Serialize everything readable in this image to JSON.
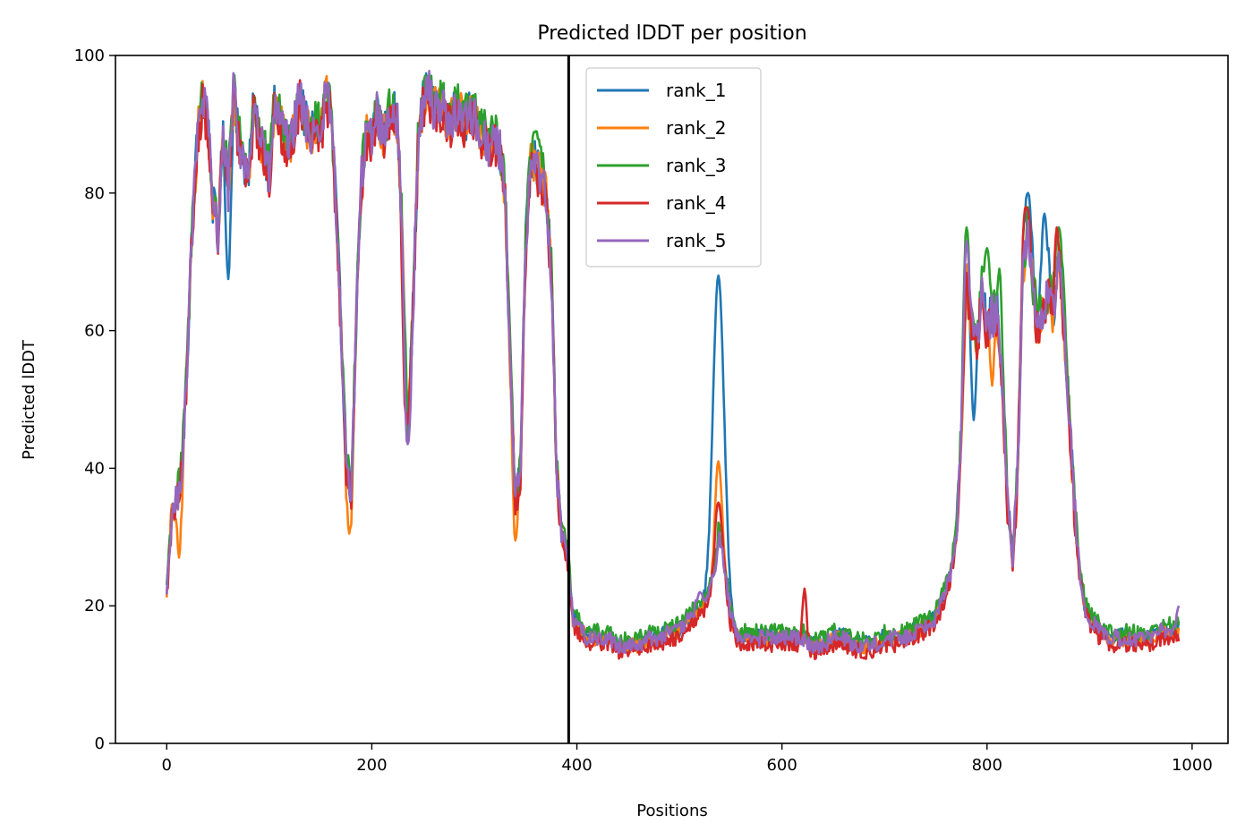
{
  "chart_data": {
    "type": "line",
    "title": "Predicted lDDT per position",
    "xlabel": "Positions",
    "ylabel": "Predicted lDDT",
    "xlim": [
      -50,
      1035
    ],
    "ylim": [
      0,
      100
    ],
    "xticks": [
      0,
      200,
      400,
      600,
      800,
      1000
    ],
    "yticks": [
      0,
      20,
      40,
      60,
      80,
      100
    ],
    "vline_x": 392,
    "grid": false,
    "legend_position": "top, left of center",
    "base_profile": [
      [
        0,
        22
      ],
      [
        5,
        33
      ],
      [
        10,
        35
      ],
      [
        15,
        40
      ],
      [
        20,
        55
      ],
      [
        25,
        75
      ],
      [
        30,
        88
      ],
      [
        35,
        94
      ],
      [
        40,
        90
      ],
      [
        45,
        78
      ],
      [
        50,
        74
      ],
      [
        55,
        88
      ],
      [
        60,
        80
      ],
      [
        65,
        94
      ],
      [
        70,
        88
      ],
      [
        75,
        84
      ],
      [
        80,
        82
      ],
      [
        85,
        93
      ],
      [
        90,
        88
      ],
      [
        95,
        86
      ],
      [
        100,
        82
      ],
      [
        105,
        92
      ],
      [
        110,
        90
      ],
      [
        115,
        88
      ],
      [
        120,
        86
      ],
      [
        125,
        90
      ],
      [
        130,
        94
      ],
      [
        135,
        90
      ],
      [
        140,
        88
      ],
      [
        145,
        90
      ],
      [
        150,
        88
      ],
      [
        155,
        94
      ],
      [
        160,
        92
      ],
      [
        165,
        78
      ],
      [
        170,
        60
      ],
      [
        175,
        40
      ],
      [
        180,
        36
      ],
      [
        185,
        62
      ],
      [
        190,
        82
      ],
      [
        195,
        88
      ],
      [
        200,
        88
      ],
      [
        205,
        92
      ],
      [
        210,
        88
      ],
      [
        215,
        90
      ],
      [
        220,
        92
      ],
      [
        225,
        90
      ],
      [
        230,
        72
      ],
      [
        235,
        44
      ],
      [
        240,
        62
      ],
      [
        245,
        86
      ],
      [
        250,
        93
      ],
      [
        255,
        95
      ],
      [
        260,
        92
      ],
      [
        265,
        93
      ],
      [
        270,
        92
      ],
      [
        275,
        90
      ],
      [
        280,
        91
      ],
      [
        285,
        92
      ],
      [
        290,
        90
      ],
      [
        295,
        91
      ],
      [
        300,
        91
      ],
      [
        305,
        88
      ],
      [
        310,
        88
      ],
      [
        315,
        86
      ],
      [
        320,
        88
      ],
      [
        325,
        86
      ],
      [
        330,
        80
      ],
      [
        335,
        55
      ],
      [
        340,
        35
      ],
      [
        345,
        40
      ],
      [
        350,
        72
      ],
      [
        355,
        84
      ],
      [
        360,
        84
      ],
      [
        365,
        82
      ],
      [
        370,
        80
      ],
      [
        375,
        68
      ],
      [
        380,
        40
      ],
      [
        385,
        30
      ],
      [
        390,
        28
      ],
      [
        393,
        24
      ],
      [
        396,
        18
      ],
      [
        400,
        17
      ],
      [
        410,
        15
      ],
      [
        420,
        15
      ],
      [
        430,
        15
      ],
      [
        440,
        14
      ],
      [
        450,
        14
      ],
      [
        460,
        14
      ],
      [
        470,
        15
      ],
      [
        480,
        15
      ],
      [
        490,
        16
      ],
      [
        500,
        16
      ],
      [
        510,
        18
      ],
      [
        520,
        19
      ],
      [
        525,
        20
      ],
      [
        530,
        22
      ],
      [
        535,
        25
      ],
      [
        538,
        30
      ],
      [
        541,
        28
      ],
      [
        545,
        24
      ],
      [
        550,
        18
      ],
      [
        555,
        16
      ],
      [
        560,
        15
      ],
      [
        570,
        15
      ],
      [
        580,
        15
      ],
      [
        590,
        15
      ],
      [
        600,
        15
      ],
      [
        610,
        15
      ],
      [
        620,
        15
      ],
      [
        630,
        14
      ],
      [
        640,
        14
      ],
      [
        650,
        15
      ],
      [
        660,
        15
      ],
      [
        670,
        14
      ],
      [
        680,
        14
      ],
      [
        690,
        14
      ],
      [
        700,
        15
      ],
      [
        710,
        15
      ],
      [
        720,
        15
      ],
      [
        730,
        16
      ],
      [
        740,
        17
      ],
      [
        750,
        18
      ],
      [
        755,
        20
      ],
      [
        760,
        22
      ],
      [
        765,
        25
      ],
      [
        770,
        30
      ],
      [
        775,
        45
      ],
      [
        780,
        68
      ],
      [
        785,
        60
      ],
      [
        790,
        58
      ],
      [
        795,
        65
      ],
      [
        800,
        60
      ],
      [
        805,
        62
      ],
      [
        810,
        62
      ],
      [
        815,
        52
      ],
      [
        820,
        35
      ],
      [
        825,
        26
      ],
      [
        830,
        40
      ],
      [
        835,
        68
      ],
      [
        840,
        75
      ],
      [
        845,
        65
      ],
      [
        850,
        60
      ],
      [
        855,
        62
      ],
      [
        860,
        65
      ],
      [
        865,
        62
      ],
      [
        870,
        70
      ],
      [
        875,
        60
      ],
      [
        880,
        48
      ],
      [
        885,
        35
      ],
      [
        890,
        25
      ],
      [
        895,
        20
      ],
      [
        900,
        18
      ],
      [
        910,
        16
      ],
      [
        920,
        15
      ],
      [
        930,
        15
      ],
      [
        940,
        15
      ],
      [
        950,
        15
      ],
      [
        960,
        15
      ],
      [
        970,
        16
      ],
      [
        980,
        16
      ],
      [
        987,
        16
      ]
    ],
    "series": [
      {
        "name": "rank_1",
        "color": "#1f77b4",
        "offset": 0.5,
        "features": [
          [
            538,
            68,
            5
          ],
          [
            840,
            80,
            3
          ],
          [
            856,
            77,
            3
          ],
          [
            787,
            47,
            2
          ],
          [
            60,
            67.5,
            2
          ]
        ]
      },
      {
        "name": "rank_2",
        "color": "#ff7f0e",
        "offset": 0.2,
        "features": [
          [
            538,
            41,
            3
          ],
          [
            178,
            30.5,
            2
          ],
          [
            340,
            29.5,
            2
          ],
          [
            12,
            27,
            2
          ],
          [
            805,
            52,
            2
          ]
        ]
      },
      {
        "name": "rank_3",
        "color": "#2ca02c",
        "offset": 1.2,
        "features": [
          [
            255,
            97,
            3
          ],
          [
            780,
            75,
            2
          ],
          [
            800,
            72,
            3
          ],
          [
            812,
            69,
            2
          ],
          [
            870,
            75,
            3
          ],
          [
            360,
            89,
            3
          ]
        ]
      },
      {
        "name": "rank_4",
        "color": "#d62728",
        "offset": -0.6,
        "features": [
          [
            622,
            22.5,
            2
          ],
          [
            838,
            78,
            3
          ],
          [
            868,
            75,
            2
          ],
          [
            538,
            35,
            3
          ],
          [
            233,
            48,
            2
          ]
        ]
      },
      {
        "name": "rank_5",
        "color": "#9467bd",
        "offset": 0.3,
        "features": [
          [
            520,
            22,
            3
          ],
          [
            235,
            43.5,
            2
          ],
          [
            987,
            20,
            2
          ],
          [
            780,
            73,
            2
          ]
        ]
      }
    ]
  }
}
